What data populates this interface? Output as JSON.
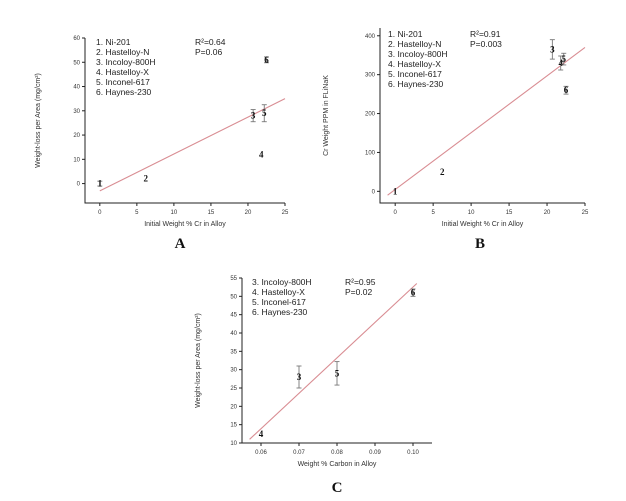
{
  "chart_data": [
    {
      "type": "scatter",
      "panel": "A",
      "xlabel": "Initial Weight % Cr in Alloy",
      "ylabel": "Weight-loss per Area (mg/cm²)",
      "xlim": [
        -2,
        25
      ],
      "ylim": [
        -8,
        60
      ],
      "xticks": [
        0,
        5,
        10,
        15,
        20,
        25
      ],
      "yticks": [
        0,
        10,
        20,
        30,
        40,
        50,
        60
      ],
      "legend": [
        "1. Ni-201",
        "2. Hastelloy-N",
        "3. Incoloy-800H",
        "4. Hastelloy-X",
        "5. Inconel-617",
        "6. Haynes-230"
      ],
      "stats": [
        "R²=0.64",
        "P=0.06"
      ],
      "points": [
        {
          "label": "1",
          "x": 0,
          "y": 0,
          "err": 1
        },
        {
          "label": "2",
          "x": 6.2,
          "y": 2,
          "err": 0
        },
        {
          "label": "3",
          "x": 20.7,
          "y": 28,
          "err": 2.5
        },
        {
          "label": "4",
          "x": 21.8,
          "y": 12,
          "err": 0
        },
        {
          "label": "5",
          "x": 22.2,
          "y": 29,
          "err": 3.5
        },
        {
          "label": "6",
          "x": 22.5,
          "y": 51,
          "err": 1.2
        }
      ],
      "fit": {
        "x": [
          0,
          25
        ],
        "y": [
          -3,
          35
        ]
      }
    },
    {
      "type": "scatter",
      "panel": "B",
      "xlabel": "Initial Weight % Cr in Alloy",
      "ylabel": "Cr Weight PPM in FLiNaK",
      "xlim": [
        -2,
        25
      ],
      "ylim": [
        -30,
        420
      ],
      "xticks": [
        0,
        5,
        10,
        15,
        20,
        25
      ],
      "yticks": [
        0,
        100,
        200,
        300,
        400
      ],
      "legend": [
        "1. Ni-201",
        "2. Hastelloy-N",
        "3. Incoloy-800H",
        "4. Hastelloy-X",
        "5. Inconel-617",
        "6. Haynes-230"
      ],
      "stats": [
        "R²=0.91",
        "P=0.003"
      ],
      "points": [
        {
          "label": "1",
          "x": 0,
          "y": 0,
          "err": 0
        },
        {
          "label": "2",
          "x": 6.2,
          "y": 50,
          "err": 0
        },
        {
          "label": "3",
          "x": 20.7,
          "y": 365,
          "err": 25
        },
        {
          "label": "4",
          "x": 21.8,
          "y": 330,
          "err": 18
        },
        {
          "label": "5",
          "x": 22.2,
          "y": 340,
          "err": 15
        },
        {
          "label": "6",
          "x": 22.5,
          "y": 260,
          "err": 10
        }
      ],
      "fit": {
        "x": [
          -1,
          25
        ],
        "y": [
          -10,
          370
        ]
      }
    },
    {
      "type": "scatter",
      "panel": "C",
      "xlabel": "Weight % Carbon in Alloy",
      "ylabel": "Weight-loss per Area (mg/cm²)",
      "xlim": [
        0.055,
        0.105
      ],
      "ylim": [
        10,
        55
      ],
      "xticks": [
        0.06,
        0.07,
        0.08,
        0.09,
        0.1
      ],
      "xticklabels": [
        "0.06",
        "0.07",
        "0.08",
        "0.09",
        "0.10"
      ],
      "yticks": [
        10,
        15,
        20,
        25,
        30,
        35,
        40,
        45,
        50,
        55
      ],
      "legend": [
        "3. Incoloy-800H",
        "4. Hastelloy-X",
        "5. Inconel-617",
        "6. Haynes-230"
      ],
      "stats": [
        "R²=0.95",
        "P=0.02"
      ],
      "points": [
        {
          "label": "4",
          "x": 0.06,
          "y": 12.5,
          "err": 0
        },
        {
          "label": "3",
          "x": 0.07,
          "y": 28,
          "err": 3
        },
        {
          "label": "5",
          "x": 0.08,
          "y": 29,
          "err": 3.2
        },
        {
          "label": "6",
          "x": 0.1,
          "y": 51,
          "err": 1
        }
      ],
      "fit": {
        "x": [
          0.057,
          0.101
        ],
        "y": [
          11,
          53.5
        ]
      }
    }
  ]
}
